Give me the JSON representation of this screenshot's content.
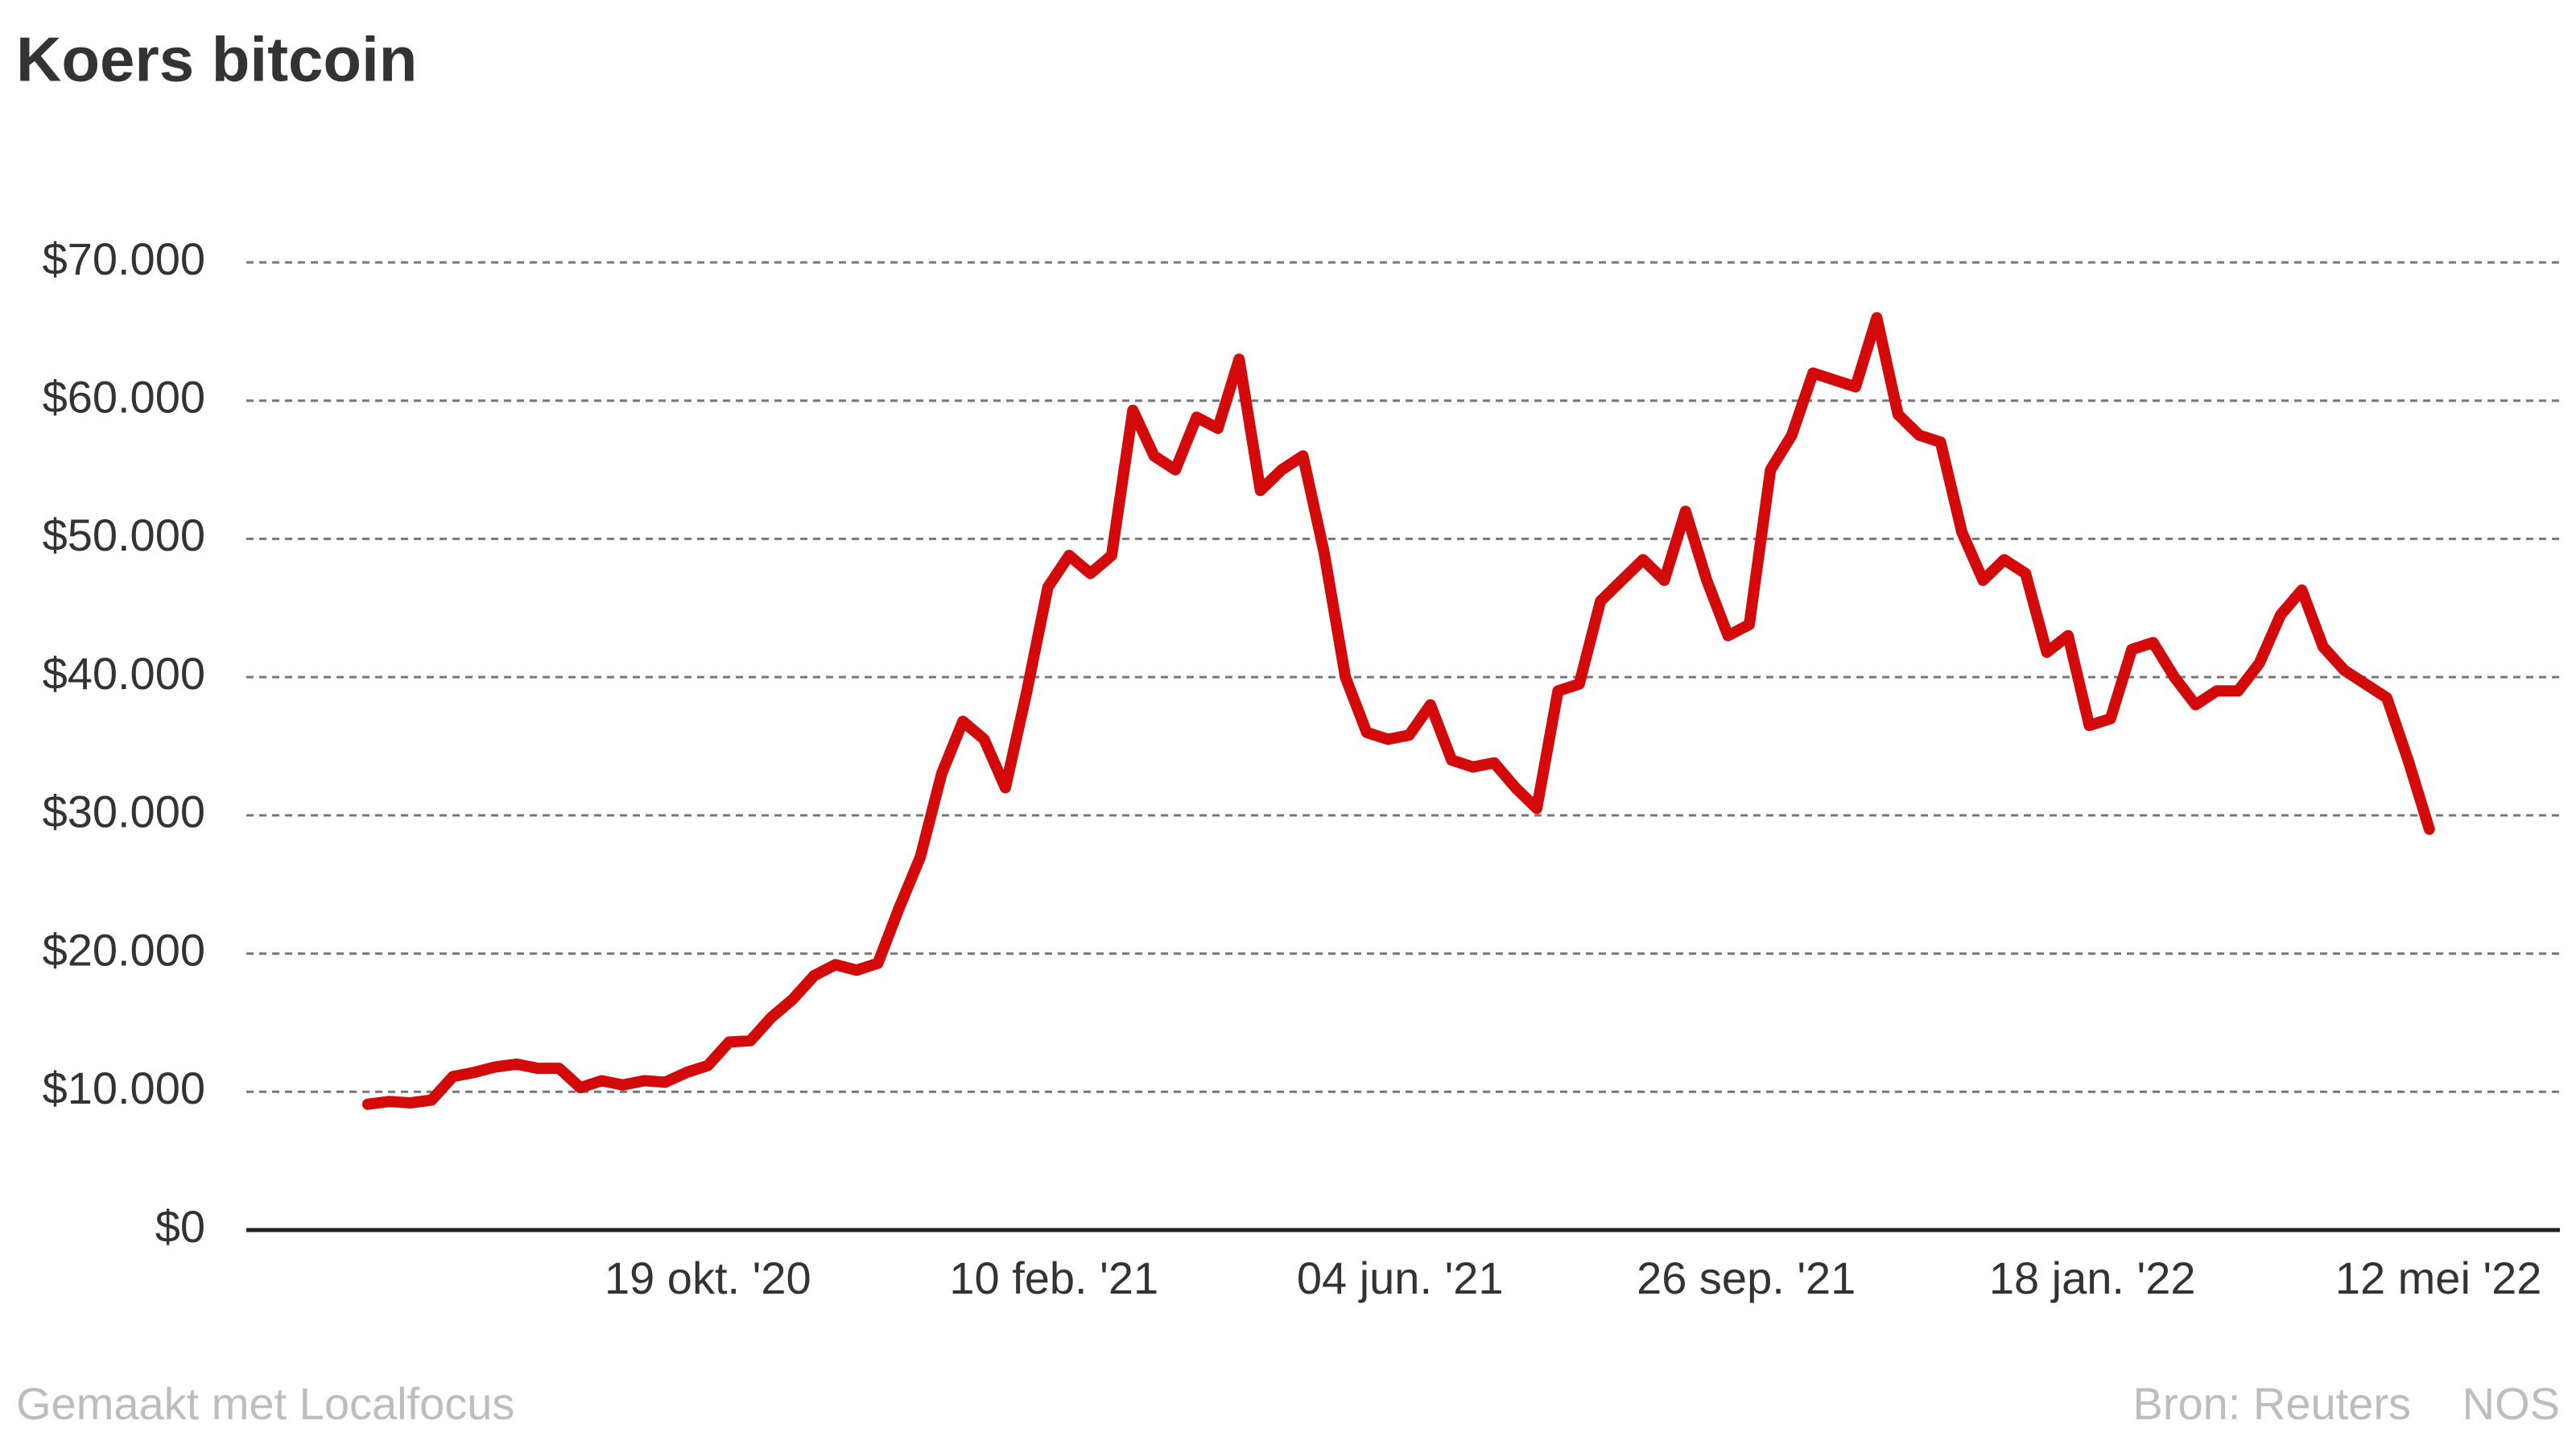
{
  "chart_data": {
    "type": "line",
    "title": "Koers bitcoin",
    "x": [
      "2020-06-29",
      "2020-07-06",
      "2020-07-13",
      "2020-07-20",
      "2020-07-27",
      "2020-08-03",
      "2020-08-10",
      "2020-08-17",
      "2020-08-24",
      "2020-08-31",
      "2020-09-07",
      "2020-09-14",
      "2020-09-21",
      "2020-09-28",
      "2020-10-05",
      "2020-10-12",
      "2020-10-19",
      "2020-10-26",
      "2020-11-02",
      "2020-11-09",
      "2020-11-16",
      "2020-11-23",
      "2020-11-30",
      "2020-12-07",
      "2020-12-14",
      "2020-12-21",
      "2020-12-28",
      "2021-01-04",
      "2021-01-11",
      "2021-01-18",
      "2021-01-25",
      "2021-02-01",
      "2021-02-08",
      "2021-02-15",
      "2021-02-22",
      "2021-03-01",
      "2021-03-08",
      "2021-03-15",
      "2021-03-22",
      "2021-03-29",
      "2021-04-05",
      "2021-04-12",
      "2021-04-19",
      "2021-04-26",
      "2021-05-03",
      "2021-05-10",
      "2021-05-17",
      "2021-05-24",
      "2021-05-31",
      "2021-06-07",
      "2021-06-14",
      "2021-06-21",
      "2021-06-28",
      "2021-07-05",
      "2021-07-12",
      "2021-07-19",
      "2021-07-26",
      "2021-08-02",
      "2021-08-09",
      "2021-08-16",
      "2021-08-23",
      "2021-08-30",
      "2021-09-06",
      "2021-09-13",
      "2021-09-20",
      "2021-09-27",
      "2021-10-04",
      "2021-10-11",
      "2021-10-18",
      "2021-10-25",
      "2021-11-01",
      "2021-11-08",
      "2021-11-15",
      "2021-11-22",
      "2021-11-29",
      "2021-12-06",
      "2021-12-13",
      "2021-12-20",
      "2021-12-27",
      "2022-01-03",
      "2022-01-10",
      "2022-01-17",
      "2022-01-24",
      "2022-01-31",
      "2022-02-07",
      "2022-02-14",
      "2022-02-21",
      "2022-02-28",
      "2022-03-07",
      "2022-03-14",
      "2022-03-21",
      "2022-03-28",
      "2022-04-04",
      "2022-04-11",
      "2022-04-18",
      "2022-04-25",
      "2022-05-02",
      "2022-05-09"
    ],
    "series": [
      {
        "name": "Koers bitcoin",
        "color": "#d40a0a",
        "values": [
          9100,
          9300,
          9200,
          9400,
          11100,
          11400,
          11800,
          12000,
          11700,
          11700,
          10300,
          10800,
          10500,
          10800,
          10700,
          11400,
          11900,
          13600,
          13700,
          15400,
          16700,
          18400,
          19200,
          18800,
          19300,
          23300,
          27000,
          33000,
          36800,
          35500,
          32000,
          38900,
          46500,
          48800,
          47500,
          48800,
          59300,
          56000,
          55000,
          58800,
          58000,
          63000,
          53500,
          55000,
          56000,
          49000,
          40000,
          36000,
          35500,
          35800,
          38000,
          34000,
          33500,
          33800,
          32000,
          30500,
          39000,
          39500,
          45500,
          47000,
          48500,
          47000,
          52000,
          47000,
          43000,
          43800,
          55000,
          57500,
          62000,
          61500,
          61000,
          66000,
          59000,
          57500,
          57000,
          50500,
          47000,
          48500,
          47500,
          41800,
          43000,
          36500,
          37000,
          42000,
          42500,
          40000,
          38000,
          39000,
          39000,
          41000,
          44500,
          46300,
          42200,
          40500,
          39500,
          38500,
          34000,
          29000
        ]
      }
    ],
    "xlim": [
      "2020-05-20",
      "2022-06-21"
    ],
    "xticks": [
      {
        "value": "2020-10-19",
        "label": "19 okt. '20"
      },
      {
        "value": "2021-02-10",
        "label": "10 feb. '21"
      },
      {
        "value": "2021-06-04",
        "label": "04 jun. '21"
      },
      {
        "value": "2021-09-26",
        "label": "26 sep. '21"
      },
      {
        "value": "2022-01-18",
        "label": "18 jan. '22"
      },
      {
        "value": "2022-05-12",
        "label": "12 mei '22"
      }
    ],
    "ylim": [
      0,
      70000
    ],
    "yticks": [
      {
        "value": 0,
        "label": "$0"
      },
      {
        "value": 10000,
        "label": "$10.000"
      },
      {
        "value": 20000,
        "label": "$20.000"
      },
      {
        "value": 30000,
        "label": "$30.000"
      },
      {
        "value": 40000,
        "label": "$40.000"
      },
      {
        "value": 50000,
        "label": "$50.000"
      },
      {
        "value": 60000,
        "label": "$60.000"
      },
      {
        "value": 70000,
        "label": "$70.000"
      }
    ],
    "grid": true,
    "credit": "Gemaakt met Localfocus",
    "source": "Bron: Reuters",
    "publisher": "NOS"
  }
}
